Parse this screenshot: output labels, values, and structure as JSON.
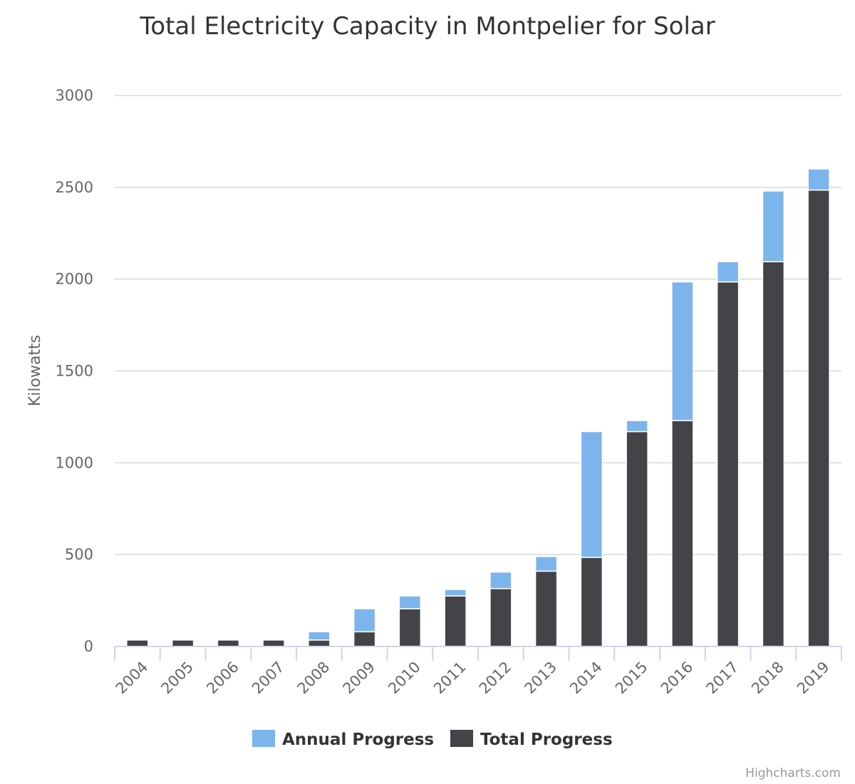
{
  "credits": "Highcharts.com",
  "colors": {
    "annual": "#7cb5ec",
    "total": "#434348"
  },
  "chart_data": {
    "type": "bar",
    "stacked": true,
    "title": "Total Electricity Capacity in Montpelier for Solar",
    "xlabel": "",
    "ylabel": "Kilowatts",
    "ylim": [
      0,
      3000
    ],
    "yticks": [
      "0",
      "500",
      "1000",
      "1500",
      "2000",
      "2500",
      "3000"
    ],
    "ytick_values": [
      0,
      500,
      1000,
      1500,
      2000,
      2500,
      3000
    ],
    "grid": true,
    "legend_position": "bottom-center",
    "categories": [
      "2004",
      "2005",
      "2006",
      "2007",
      "2008",
      "2009",
      "2010",
      "2011",
      "2012",
      "2013",
      "2014",
      "2015",
      "2016",
      "2017",
      "2018",
      "2019"
    ],
    "series": [
      {
        "name": "Annual Progress",
        "values": [
          0,
          0,
          0,
          0,
          45,
          125,
          70,
          35,
          90,
          80,
          685,
          60,
          755,
          110,
          385,
          115
        ]
      },
      {
        "name": "Total Progress",
        "values": [
          35,
          35,
          35,
          35,
          35,
          80,
          205,
          275,
          315,
          410,
          485,
          1170,
          1230,
          1985,
          2095,
          2485
        ]
      }
    ]
  }
}
